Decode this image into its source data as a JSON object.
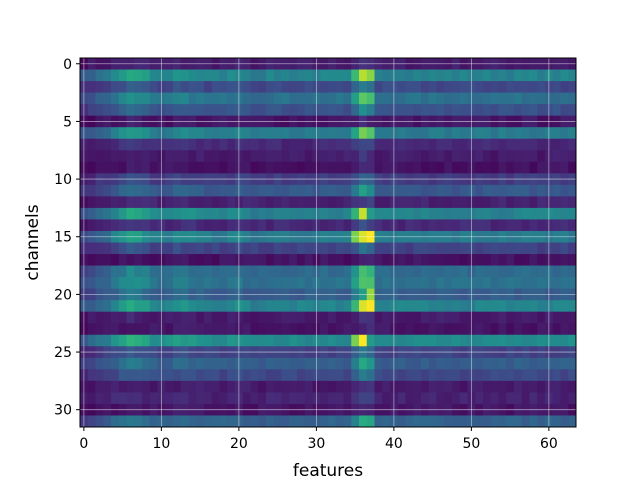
{
  "chart_data": {
    "type": "heatmap",
    "colormap": "viridis",
    "xlabel": "features",
    "ylabel": "channels",
    "n_cols": 64,
    "n_rows": 32,
    "xticks": [
      0,
      10,
      20,
      30,
      40,
      50,
      60
    ],
    "yticks": [
      0,
      5,
      10,
      15,
      20,
      25,
      30
    ],
    "grid": true,
    "value_range": [
      0,
      1
    ],
    "row_levels": [
      0.08,
      0.45,
      0.22,
      0.38,
      0.25,
      0.06,
      0.42,
      0.12,
      0.08,
      0.05,
      0.18,
      0.28,
      0.1,
      0.45,
      0.12,
      0.42,
      0.2,
      0.05,
      0.35,
      0.38,
      0.3,
      0.45,
      0.08,
      0.06,
      0.48,
      0.2,
      0.3,
      0.22,
      0.08,
      0.1,
      0.06,
      0.32
    ],
    "col_profile": [
      0.6,
      0.7,
      0.8,
      0.9,
      1.05,
      1.2,
      1.35,
      1.3,
      1.2,
      1.05,
      1.0,
      1.05,
      1.15,
      1.15,
      1.1,
      1.05,
      1.0,
      1.0,
      1.0,
      1.05,
      1.1,
      1.0,
      0.95,
      0.95,
      1.0,
      1.0,
      1.0,
      1.0,
      1.0,
      1.0,
      1.0,
      1.0,
      1.0,
      1.0,
      1.0,
      1.0,
      1.0,
      1.0,
      1.0,
      1.0,
      1.0,
      1.0,
      1.0,
      1.0,
      1.0,
      1.0,
      1.0,
      1.0,
      1.0,
      1.0,
      1.0,
      1.0,
      1.0,
      1.0,
      1.0,
      1.0,
      1.0,
      1.0,
      1.0,
      1.0,
      1.0,
      1.0,
      1.0,
      1.0
    ],
    "hot_column_boost": [
      {
        "col": 35,
        "factor": 1.45
      },
      {
        "col": 36,
        "factor": 1.95
      },
      {
        "col": 37,
        "factor": 1.8
      }
    ],
    "hot_cells": [
      {
        "col": 36,
        "row": 1,
        "value": 0.9
      },
      {
        "col": 36,
        "row": 3,
        "value": 0.75
      },
      {
        "col": 36,
        "row": 13,
        "value": 0.92
      },
      {
        "col": 37,
        "row": 13,
        "value": 0.55
      },
      {
        "col": 35,
        "row": 15,
        "value": 0.8
      },
      {
        "col": 36,
        "row": 15,
        "value": 0.95
      },
      {
        "col": 37,
        "row": 15,
        "value": 1.0
      },
      {
        "col": 36,
        "row": 18,
        "value": 0.7
      },
      {
        "col": 37,
        "row": 20,
        "value": 0.85
      },
      {
        "col": 36,
        "row": 21,
        "value": 0.95
      },
      {
        "col": 37,
        "row": 21,
        "value": 1.0
      },
      {
        "col": 35,
        "row": 24,
        "value": 0.8
      },
      {
        "col": 36,
        "row": 24,
        "value": 1.0
      },
      {
        "col": 37,
        "row": 24,
        "value": 0.55
      }
    ],
    "noise_amplitude": 0.06,
    "colors": {
      "grid": "#ffffff",
      "frame": "#000000",
      "background": "#ffffff"
    }
  }
}
